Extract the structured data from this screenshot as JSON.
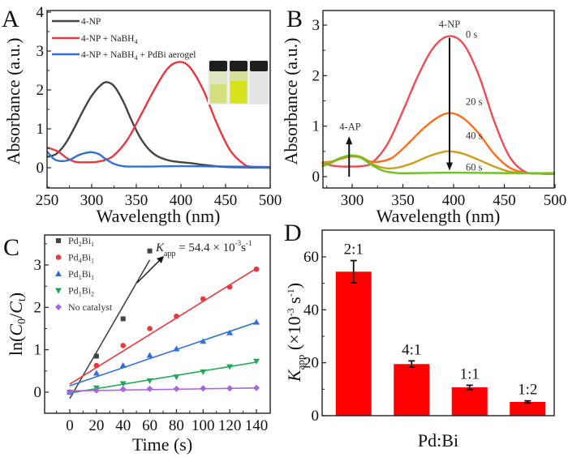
{
  "figure": {
    "panels": [
      "A",
      "B",
      "C",
      "D"
    ]
  },
  "chart_data": [
    {
      "panel": "A",
      "type": "line",
      "xlabel": "Wavelength (nm)",
      "ylabel": "Absorbance (a.u.)",
      "xlim": [
        250,
        500
      ],
      "ylim": [
        -0.5,
        4
      ],
      "xticks": [
        "250",
        "300",
        "350",
        "400",
        "450",
        "500"
      ],
      "yticks": [
        "0",
        "1",
        "2",
        "3",
        "4"
      ],
      "legend_position": "top-left",
      "inset": "photo of three vials: pale yellow, bright yellow, colorless",
      "series": [
        {
          "name": "4-NP",
          "color": "#444444",
          "x": [
            250,
            260,
            270,
            280,
            290,
            300,
            310,
            317,
            325,
            335,
            345,
            355,
            365,
            375,
            390,
            410,
            430,
            450,
            470,
            500
          ],
          "y": [
            0.28,
            0.35,
            0.6,
            1.0,
            1.45,
            1.85,
            2.12,
            2.2,
            2.1,
            1.72,
            1.2,
            0.75,
            0.45,
            0.28,
            0.17,
            0.12,
            0.06,
            0.02,
            0.01,
            0.0
          ]
        },
        {
          "name": "4-NP + NaBH4",
          "color": "#e8383d",
          "x": [
            250,
            262,
            272,
            282,
            295,
            305,
            315,
            325,
            340,
            355,
            370,
            385,
            398,
            410,
            425,
            440,
            455,
            470,
            480,
            500
          ],
          "y": [
            0.52,
            0.42,
            0.25,
            0.15,
            0.14,
            0.15,
            0.2,
            0.32,
            0.72,
            1.35,
            2.0,
            2.55,
            2.72,
            2.58,
            2.0,
            1.15,
            0.45,
            0.1,
            0.02,
            0.0
          ]
        },
        {
          "name": "4-NP + NaBH4 + PdBi aerogel",
          "color": "#2f6fd6",
          "x": [
            250,
            258,
            266,
            275,
            285,
            293,
            300,
            308,
            316,
            325,
            335,
            345,
            360,
            400,
            450,
            500
          ],
          "y": [
            0.42,
            0.22,
            0.17,
            0.2,
            0.32,
            0.38,
            0.4,
            0.35,
            0.22,
            0.1,
            0.04,
            0.03,
            0.03,
            0.04,
            0.03,
            0.02
          ]
        }
      ]
    },
    {
      "panel": "B",
      "type": "line",
      "xlabel": "Wavelength (nm)",
      "ylabel": "Absorbance (a.u.)",
      "xlim": [
        270,
        500
      ],
      "ylim": [
        -0.25,
        3.25
      ],
      "xticks": [
        "300",
        "350",
        "400",
        "450",
        "500"
      ],
      "yticks": [
        "0",
        "1",
        "2",
        "3"
      ],
      "annotations": [
        {
          "text": "4-NP",
          "x": 396,
          "y": 2.95
        },
        {
          "text": "0 s",
          "x": 412,
          "y": 2.75
        },
        {
          "text": "20 s",
          "x": 412,
          "y": 1.42
        },
        {
          "text": "40 s",
          "x": 412,
          "y": 0.75
        },
        {
          "text": "60 s",
          "x": 412,
          "y": 0.12
        },
        {
          "text": "4-AP",
          "x": 298,
          "y": 0.92
        }
      ],
      "arrows": [
        {
          "label": "4-NP decrease",
          "x": 396,
          "from": 2.75,
          "to": 0.12
        },
        {
          "label": "4-AP increase",
          "x": 297,
          "from": 0.0,
          "to": 0.8
        }
      ],
      "series": [
        {
          "name": "0 s",
          "color": "#ef4b55",
          "x": [
            270,
            280,
            290,
            300,
            310,
            320,
            335,
            350,
            365,
            380,
            395,
            410,
            425,
            440,
            455,
            470,
            485,
            500
          ],
          "y": [
            0.28,
            0.22,
            0.2,
            0.2,
            0.21,
            0.28,
            0.65,
            1.3,
            2.0,
            2.55,
            2.78,
            2.62,
            2.0,
            1.1,
            0.4,
            0.1,
            0.06,
            0.05
          ]
        },
        {
          "name": "20 s",
          "color": "#ff6d1c",
          "x": [
            270,
            280,
            290,
            300,
            310,
            318,
            328,
            340,
            355,
            370,
            385,
            397,
            410,
            425,
            440,
            455,
            470,
            485,
            500
          ],
          "y": [
            0.28,
            0.3,
            0.36,
            0.4,
            0.37,
            0.3,
            0.3,
            0.38,
            0.65,
            0.95,
            1.18,
            1.26,
            1.15,
            0.85,
            0.45,
            0.18,
            0.08,
            0.06,
            0.05
          ]
        },
        {
          "name": "40 s",
          "color": "#c9a01c",
          "x": [
            270,
            280,
            290,
            300,
            310,
            320,
            332,
            345,
            360,
            375,
            390,
            398,
            410,
            425,
            440,
            455,
            470,
            500
          ],
          "y": [
            0.25,
            0.3,
            0.38,
            0.42,
            0.38,
            0.25,
            0.17,
            0.18,
            0.27,
            0.4,
            0.49,
            0.5,
            0.45,
            0.33,
            0.2,
            0.1,
            0.07,
            0.06
          ]
        },
        {
          "name": "60 s",
          "color": "#6cc21e",
          "x": [
            270,
            280,
            290,
            298,
            308,
            318,
            330,
            345,
            360,
            400,
            450,
            500
          ],
          "y": [
            0.2,
            0.28,
            0.38,
            0.42,
            0.38,
            0.25,
            0.12,
            0.07,
            0.07,
            0.08,
            0.07,
            0.07
          ]
        }
      ]
    },
    {
      "panel": "C",
      "type": "scatter",
      "xlabel": "Time (s)",
      "ylabel": "ln(C0/Ct)",
      "xlim": [
        -20,
        150
      ],
      "ylim": [
        -0.5,
        3.7
      ],
      "xticks": [
        "0",
        "20",
        "40",
        "60",
        "80",
        "100",
        "120",
        "140"
      ],
      "yticks": [
        "0",
        "1",
        "2",
        "3"
      ],
      "legend_position": "top-left",
      "annotation": {
        "text": "Kapp = 54.4 × 10^-3 s^-1",
        "K_label": "K",
        "K_sub": "app",
        "equals": " = 54.4 × 10",
        "exp": "-3",
        "unit": "s",
        "unit_exp": "-1"
      },
      "series": [
        {
          "name": "Pd2Bi1",
          "main": "Pd",
          "sub1": "2",
          "mid": "Bi",
          "sub2": "1",
          "marker": "square",
          "color": "#444444",
          "x": [
            0,
            20,
            40,
            60
          ],
          "y": [
            0.0,
            0.85,
            1.73,
            3.33
          ],
          "fit": [
            -0.15,
            0.0545
          ]
        },
        {
          "name": "Pd4Bi1",
          "main": "Pd",
          "sub1": "4",
          "mid": "Bi",
          "sub2": "1",
          "marker": "circle",
          "color": "#e8383d",
          "x": [
            0,
            20,
            40,
            60,
            80,
            100,
            120,
            140
          ],
          "y": [
            0.0,
            0.63,
            1.1,
            1.5,
            1.79,
            2.2,
            2.48,
            2.9
          ],
          "fit": [
            0.19,
            0.0195
          ]
        },
        {
          "name": "Pd1Bi1",
          "main": "Pd",
          "sub1": "1",
          "mid": "Bi",
          "sub2": "1",
          "marker": "triangle-up",
          "color": "#2f6fd6",
          "x": [
            0,
            20,
            40,
            60,
            80,
            100,
            120,
            140
          ],
          "y": [
            0.0,
            0.45,
            0.63,
            0.87,
            1.02,
            1.2,
            1.4,
            1.65
          ],
          "fit": [
            0.15,
            0.0107
          ]
        },
        {
          "name": "Pd1Bi2",
          "main": "Pd",
          "sub1": "1",
          "mid": "Bi",
          "sub2": "2",
          "marker": "triangle-down",
          "color": "#23a85a",
          "x": [
            0,
            20,
            40,
            60,
            80,
            100,
            120,
            140
          ],
          "y": [
            0.0,
            0.1,
            0.2,
            0.27,
            0.36,
            0.48,
            0.6,
            0.73
          ],
          "fit": [
            -0.02,
            0.0052
          ]
        },
        {
          "name": "No catalyst",
          "main": "No catalyst",
          "sub1": "",
          "mid": "",
          "sub2": "",
          "marker": "diamond",
          "color": "#a566e0",
          "x": [
            0,
            20,
            40,
            60,
            80,
            100,
            120,
            140
          ],
          "y": [
            0.0,
            0.04,
            0.07,
            0.08,
            0.08,
            0.09,
            0.09,
            0.1
          ],
          "fit": [
            0.03,
            0.0005
          ]
        }
      ]
    },
    {
      "panel": "D",
      "type": "bar",
      "xlabel": "Pd:Bi",
      "ylabel": "Kapp (×10^-3 s^-1)",
      "ylabel_parts": {
        "K": "K",
        "sub": "app",
        "rest": " (×10",
        "exp": "-3",
        "unit": " s",
        "unit_exp": "-1",
        "close": ")"
      },
      "ylim": [
        0,
        70
      ],
      "yticks": [
        "0",
        "20",
        "40",
        "60"
      ],
      "bar_color": "#ff0000",
      "categories": [
        "2:1",
        "4:1",
        "1:1",
        "1:2"
      ],
      "values": [
        54.4,
        19.5,
        10.7,
        5.2
      ],
      "errors": [
        4.2,
        1.2,
        0.8,
        0.4
      ]
    }
  ]
}
